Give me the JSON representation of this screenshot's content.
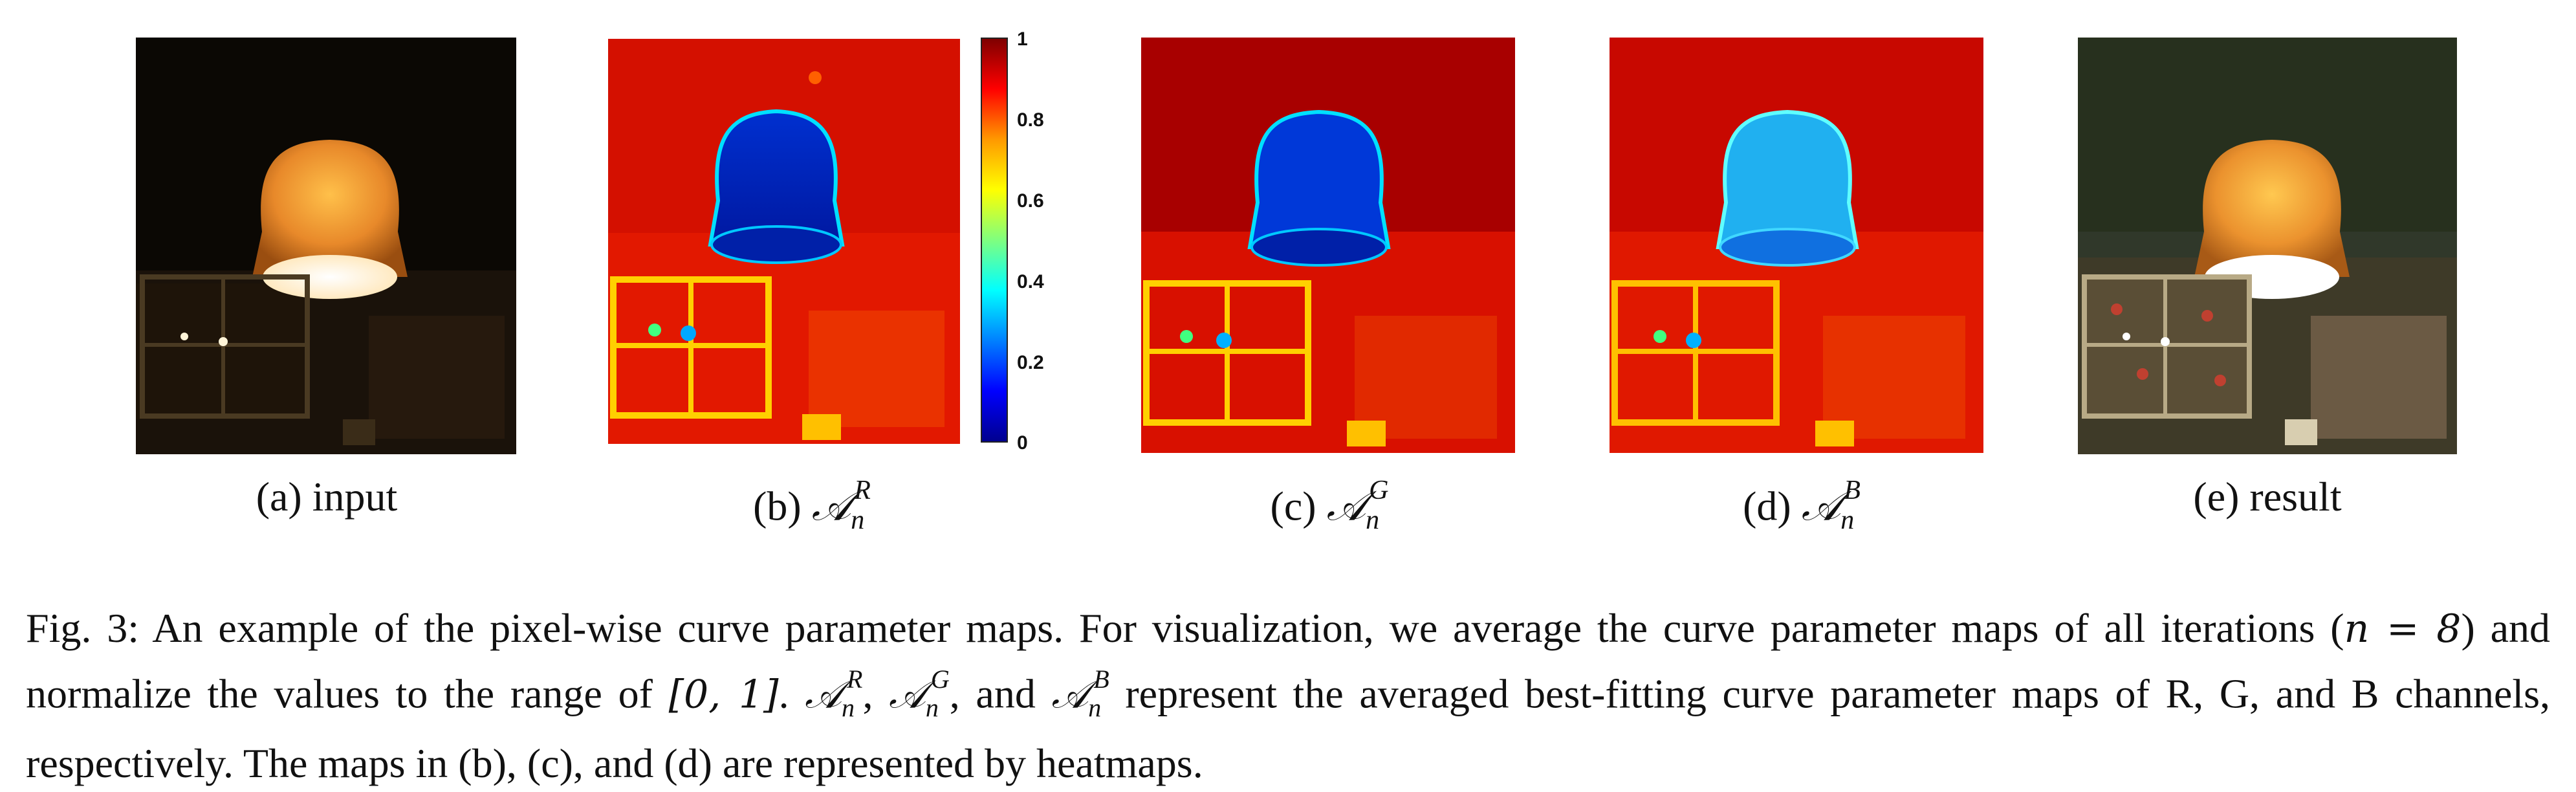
{
  "panels": [
    {
      "letter": "(a)",
      "name": "input",
      "type": "photo"
    },
    {
      "letter": "(b)",
      "symbol": "𝒜",
      "sub": "n",
      "sup": "R",
      "type": "heatmap"
    },
    {
      "letter": "(c)",
      "symbol": "𝒜",
      "sub": "n",
      "sup": "G",
      "type": "heatmap"
    },
    {
      "letter": "(d)",
      "symbol": "𝒜",
      "sub": "n",
      "sup": "B",
      "type": "heatmap"
    },
    {
      "letter": "(e)",
      "name": "result",
      "type": "photo"
    }
  ],
  "colorbar": {
    "ticks": [
      "1",
      "0.8",
      "0.6",
      "0.4",
      "0.2",
      "0"
    ],
    "colors": [
      "#7f0000",
      "#ff0000",
      "#ff9900",
      "#ffff00",
      "#7fff7f",
      "#00ffff",
      "#0080ff",
      "#0000ff",
      "#00008f"
    ]
  },
  "caption": {
    "part1": "Fig. 3: An example of the pixel-wise curve parameter maps. For visualization, we average the curve parameter maps of all iterations (",
    "math_n": "n = 8",
    "part2": ") and normalize the values to the range of ",
    "math_range": "[0, 1]",
    "part3": ". ",
    "part4": ", ",
    "part5": ", and ",
    "part6": " represent the averaged best-fitting curve parameter maps of R, G, and B channels, respectively. The maps in (b), (c), and (d) are represented by heatmaps."
  }
}
